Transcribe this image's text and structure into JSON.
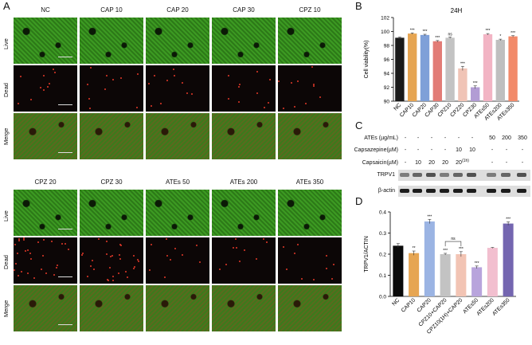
{
  "panels": {
    "A": "A",
    "B": "B",
    "C": "C",
    "D": "D"
  },
  "panelA": {
    "top_columns": [
      "NC",
      "CAP 10",
      "CAP 20",
      "CAP 30",
      "CPZ 10"
    ],
    "bottom_columns": [
      "CPZ 20",
      "CPZ 30",
      "ATEs 50",
      "ATEs 200",
      "ATEs 350"
    ],
    "rows": [
      "Live",
      "Dead",
      "Merge"
    ],
    "colors": {
      "live": "#2f8a1c",
      "dead": "#0c0606",
      "merge": "#3f7a1d",
      "dead_dot": "#e53a2a"
    }
  },
  "chart_data": [
    {
      "panel": "B",
      "type": "bar",
      "title": "24H",
      "ylabel": "Cell viability(%)",
      "ylim": [
        90,
        102
      ],
      "yticks": [
        90,
        92,
        94,
        96,
        98,
        100,
        102
      ],
      "categories": [
        "NC",
        "CAP10",
        "CAP20",
        "CAP30",
        "CPZ10",
        "CPZ20",
        "CPZ30",
        "ATEs50",
        "ATEs200",
        "ATEs350"
      ],
      "values": [
        99.1,
        99.7,
        99.5,
        98.6,
        99.1,
        94.7,
        92.0,
        99.6,
        98.8,
        99.3
      ],
      "errors": [
        0.1,
        0.1,
        0.1,
        0.1,
        0.1,
        0.3,
        0.2,
        0.1,
        0.1,
        0.1
      ],
      "significance": [
        "",
        "***",
        "***",
        "***",
        "ns",
        "***",
        "***",
        "***",
        "*",
        "***"
      ],
      "colors": [
        "#1a1a1a",
        "#e6a552",
        "#7fa0d8",
        "#e27c76",
        "#c3c3c3",
        "#f0c4b6",
        "#b29cd4",
        "#f2b4c4",
        "#bfbfbf",
        "#f28a6a"
      ]
    },
    {
      "panel": "D",
      "type": "bar",
      "ylabel": "TRPV1/ACTIN",
      "ylim": [
        0,
        0.4
      ],
      "yticks": [
        "0.0",
        "0.1",
        "0.2",
        "0.3",
        "0.4"
      ],
      "categories": [
        "NC",
        "CAP10",
        "CAP20",
        "CPZ10+CAP20",
        "CPZ10(1H)+CAP20",
        "ATEs50",
        "ATEs200",
        "ATEs350"
      ],
      "values": [
        0.24,
        0.205,
        0.355,
        0.2,
        0.2,
        0.138,
        0.23,
        0.345
      ],
      "errors": [
        0.01,
        0.01,
        0.01,
        0.004,
        0.012,
        0.006,
        0.002,
        0.008
      ],
      "significance": [
        "",
        "**",
        "***",
        "***",
        "***",
        "***",
        "",
        "***"
      ],
      "bracket_label": "ns",
      "colors": [
        "#0a0a0a",
        "#e6a552",
        "#9bb4e3",
        "#c3c3c3",
        "#f2c4b4",
        "#b8a4dc",
        "#f2bfcf",
        "#7466b0"
      ]
    }
  ],
  "panelC": {
    "conditions": [
      {
        "label": "ATEs (µg/mL)",
        "values": [
          "-",
          "-",
          "-",
          "-",
          "-",
          "-",
          "50",
          "200",
          "350"
        ]
      },
      {
        "label": "Capsazepine(µM)",
        "values": [
          "-",
          "-",
          "-",
          "-",
          "10",
          "10",
          "-",
          "-",
          "-"
        ]
      },
      {
        "label": "Capsaicin(µM)",
        "values": [
          "-",
          "10",
          "20",
          "20",
          "20",
          "",
          "-",
          "-",
          "-"
        ]
      }
    ],
    "capsaicin_note": "(1h)",
    "blots": [
      "TRPV1",
      "β-actin"
    ]
  }
}
